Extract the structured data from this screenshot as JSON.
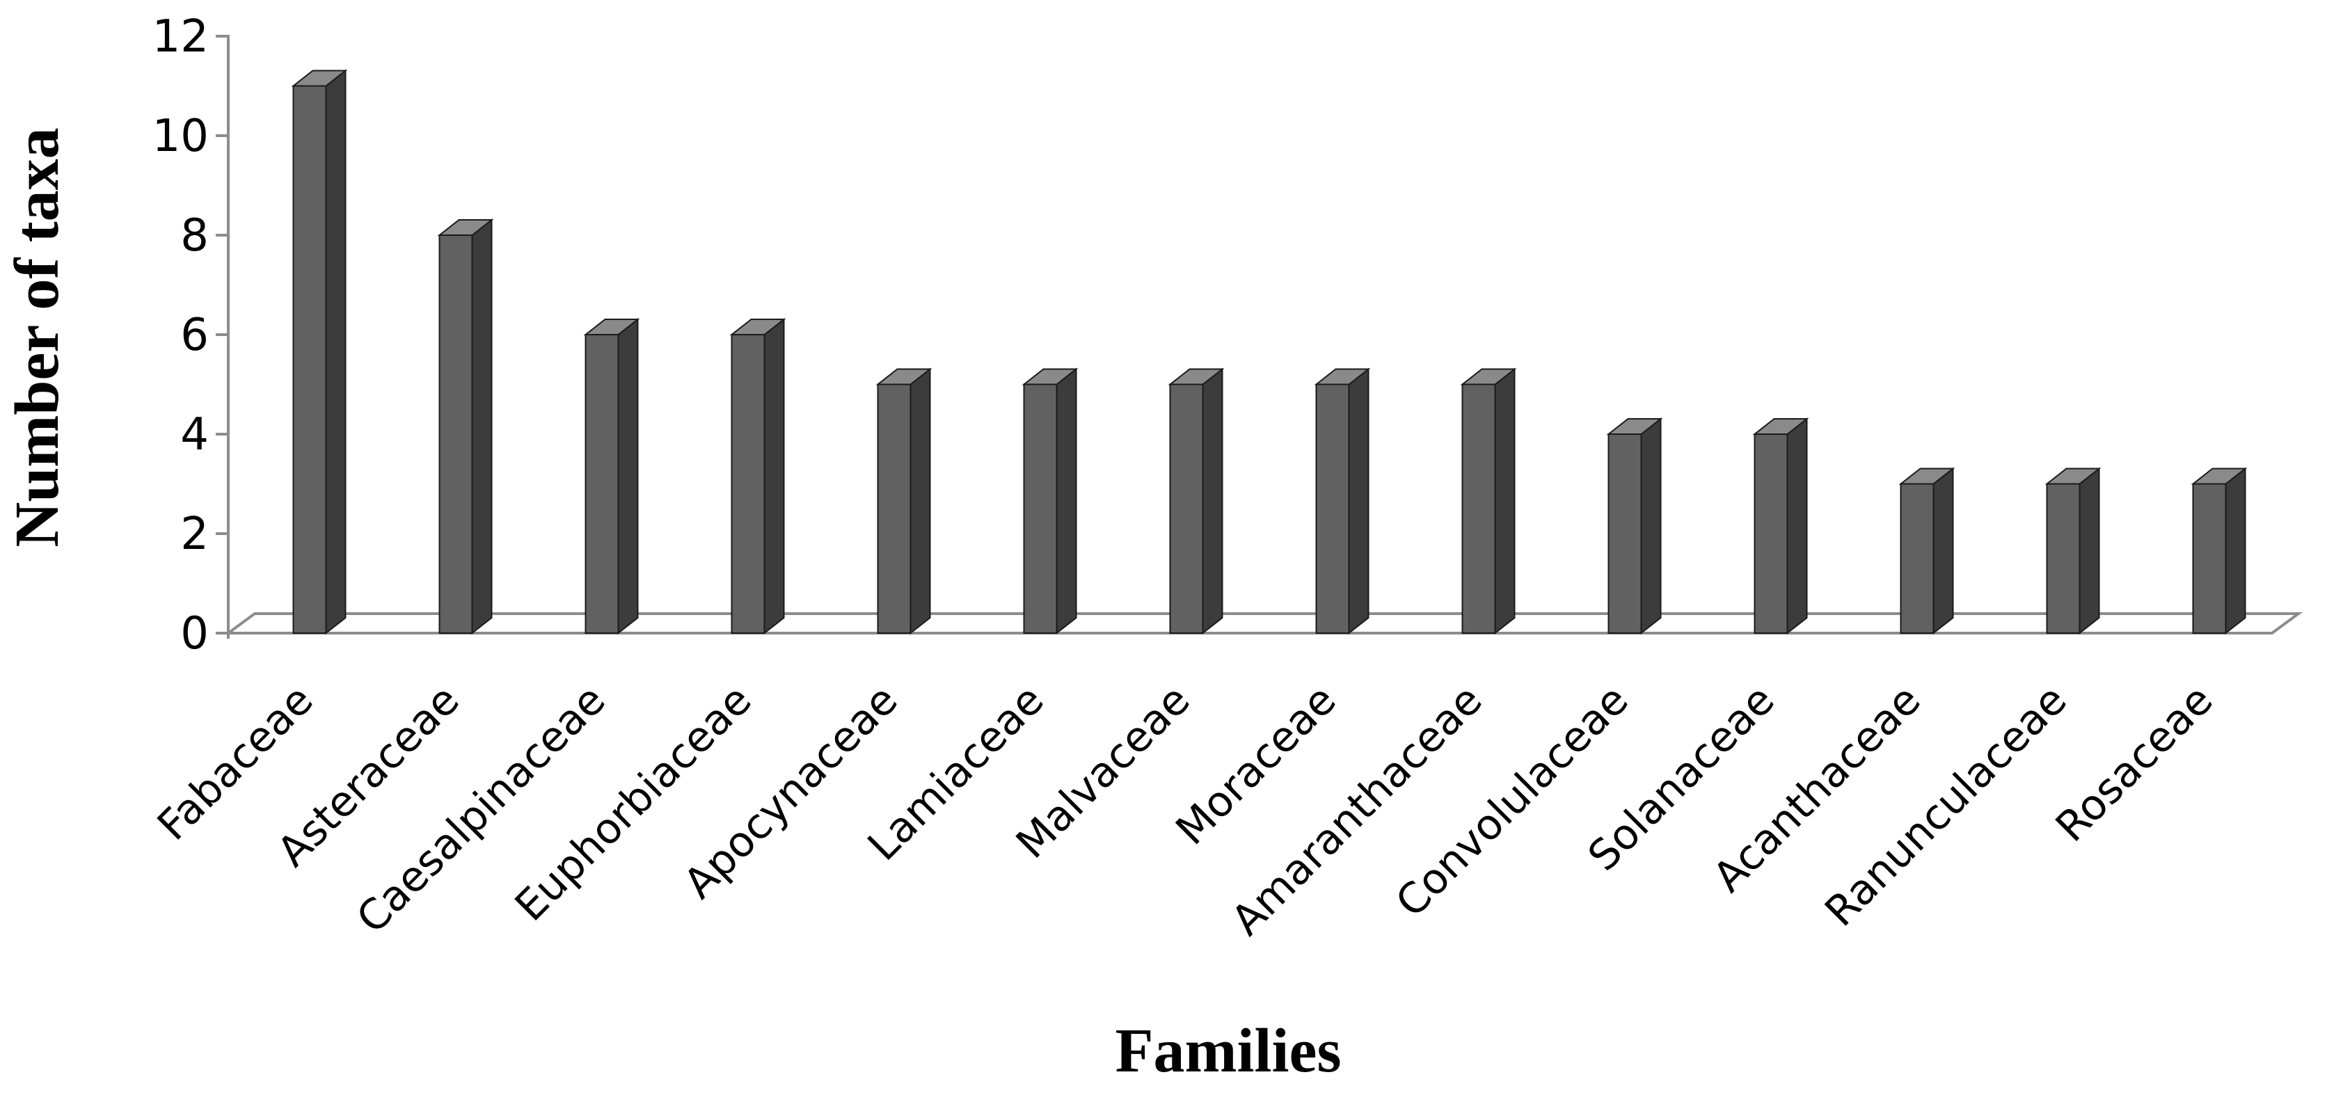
{
  "chart_data": {
    "type": "bar",
    "title": "",
    "xlabel": "Families",
    "ylabel": "Number of taxa",
    "categories": [
      "Fabaceae",
      "Asteraceae",
      "Caesalpinaceae",
      "Euphorbiaceae",
      "Apocynaceae",
      "Lamiaceae",
      "Malvaceae",
      "Moraceae",
      "Amaranthaceae",
      "Convolulaceae",
      "Solanaceae",
      "Acanthaceae",
      "Ranunculaceae",
      "Rosaceae"
    ],
    "values": [
      11,
      8,
      6,
      6,
      5,
      5,
      5,
      5,
      5,
      4,
      4,
      3,
      3,
      3
    ],
    "yticks": [
      "0",
      "2",
      "4",
      "6",
      "8",
      "10",
      "12"
    ],
    "ylim": [
      0,
      12
    ],
    "grid": false,
    "legend": "none",
    "colors": {
      "bar_front": "#616161",
      "bar_side": "#3c3c3c",
      "bar_top": "#8a8a8a",
      "bar_outline": "#1a1a1a",
      "floor_line": "#8c8c8c",
      "axis_line": "#8c8c8c"
    }
  }
}
